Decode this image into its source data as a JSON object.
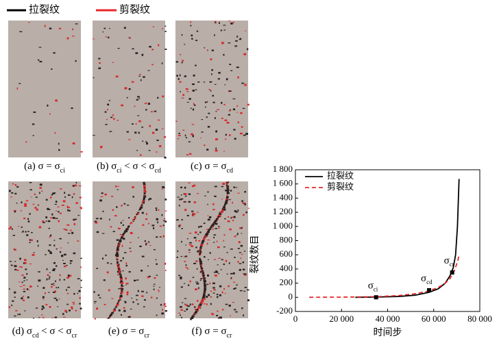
{
  "chart_data": {
    "type": "line",
    "x_label": "时间步",
    "y_label": "裂纹数目",
    "xlim": [
      0,
      80000
    ],
    "ylim": [
      -200,
      1800
    ],
    "xticks": [
      0,
      {
        "value": 20000,
        "label": "20 000"
      },
      {
        "value": 40000,
        "label": "40 000"
      },
      {
        "value": 60000,
        "label": "60 000"
      },
      {
        "value": 80000,
        "label": "80 000"
      }
    ],
    "yticks": [
      -200,
      0,
      200,
      400,
      600,
      800,
      {
        "value": 1000,
        "label": "1 000"
      },
      {
        "value": 1200,
        "label": "1 200"
      },
      {
        "value": 1400,
        "label": "1 400"
      },
      {
        "value": 1600,
        "label": "1 600"
      },
      {
        "value": 1800,
        "label": "1 800"
      }
    ],
    "legend": "upper left",
    "series": [
      {
        "name": "拉裂纹",
        "color": "#000000",
        "dash": false,
        "x": [
          26000,
          35000,
          45000,
          52000,
          58000,
          62000,
          65000,
          67000,
          68500,
          69500,
          70300,
          71000
        ],
        "values": [
          0,
          3,
          12,
          30,
          70,
          120,
          200,
          300,
          420,
          600,
          1000,
          1670
        ]
      },
      {
        "name": "剪裂纹",
        "color": "#e8262a",
        "dash": true,
        "x": [
          6000,
          20000,
          35000,
          45000,
          52000,
          58000,
          62000,
          65000,
          67000,
          69000,
          70500,
          71000
        ],
        "values": [
          0,
          2,
          8,
          25,
          50,
          90,
          140,
          200,
          260,
          380,
          520,
          600
        ]
      }
    ],
    "markers": [
      {
        "x": 35000,
        "y": 0,
        "label": "σ",
        "sub": "ci"
      },
      {
        "x": 58000,
        "y": 100,
        "label": "σ",
        "sub": "cd"
      },
      {
        "x": 68000,
        "y": 350,
        "label": "σ",
        "sub": "cr"
      }
    ]
  },
  "panels": [
    {
      "parts": [
        "(a) σ = σ",
        "ci"
      ]
    },
    {
      "parts": [
        "(b) σ",
        "ci",
        " < σ < σ",
        "cd"
      ]
    },
    {
      "parts": [
        "(c) σ = σ",
        "cd"
      ]
    },
    {
      "parts": [
        "(d) σ",
        "cd",
        " < σ < σ",
        "cr"
      ]
    },
    {
      "parts": [
        "(e) σ = σ",
        "cr"
      ]
    },
    {
      "parts": [
        "(f) σ = σ",
        "cr"
      ]
    }
  ]
}
